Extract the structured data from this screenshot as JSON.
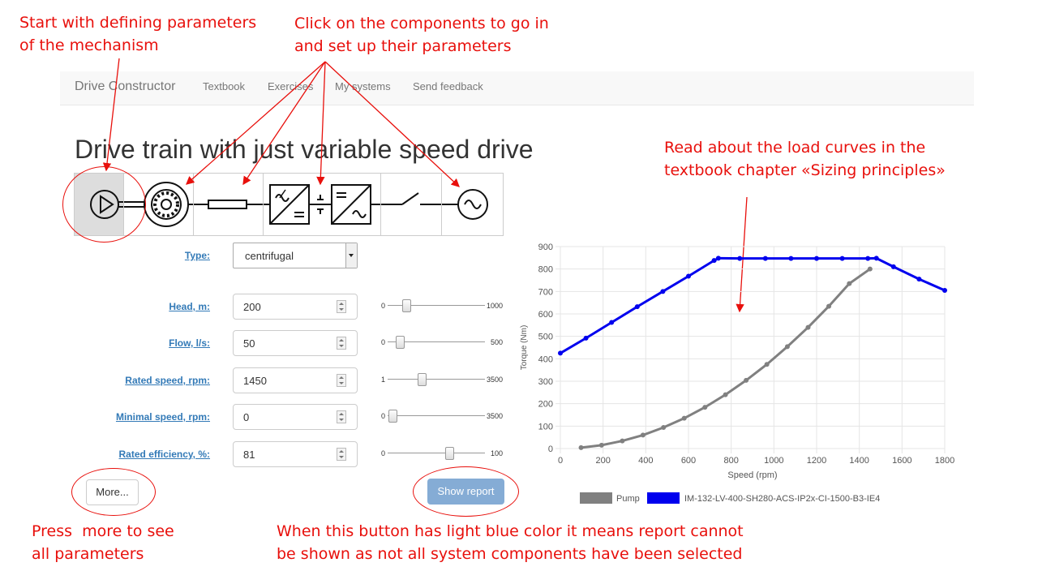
{
  "annotations": {
    "start_params": [
      "Start with defining parameters",
      "of the mechanism"
    ],
    "click_components": [
      "Click on the components to go in",
      "and set up their parameters"
    ],
    "load_curves": [
      "Read about the load curves in the",
      "textbook chapter «Sizing principles»"
    ],
    "press_more": [
      "Press  more to see",
      "all parameters"
    ],
    "light_blue": [
      "When this button has light blue color it means report cannot",
      "be shown as not all system components have been selected"
    ]
  },
  "navbar": {
    "brand": "Drive Constructor",
    "links": [
      "Textbook",
      "Exercises",
      "My systems",
      "Send feedback"
    ]
  },
  "page_title": "Drive train with just variable speed drive",
  "schematic": {
    "components": [
      "pump-icon",
      "motor-icon",
      "shaft-icon",
      "converter-icon",
      "switch-icon",
      "grid-source-icon"
    ],
    "selected": "pump-icon"
  },
  "form": {
    "type": {
      "label": "Type:",
      "value": "centrifugal"
    },
    "fields": [
      {
        "label": "Head, m:",
        "value": "200",
        "min": "0",
        "max": "1000",
        "fraction": 0.2
      },
      {
        "label": "Flow, l/s:",
        "value": "50",
        "min": "0",
        "max": "500",
        "fraction": 0.1
      },
      {
        "label": "Rated speed, rpm:",
        "value": "1450",
        "min": "1",
        "max": "3500",
        "fraction": 0.414
      },
      {
        "label": "Minimal speed, rpm:",
        "value": "0",
        "min": "0",
        "max": "3500",
        "fraction": 0.0
      },
      {
        "label": "Rated efficiency, %:",
        "value": "81",
        "min": "0",
        "max": "100",
        "fraction": 0.81
      }
    ]
  },
  "buttons": {
    "more": "More...",
    "show_report": "Show report"
  },
  "colors": {
    "annotation": "#e8100c",
    "pump_series": "#808080",
    "motor_series": "#0000ee",
    "report_button": "#85acd5"
  },
  "chart_data": {
    "type": "line",
    "xlabel": "Speed (rpm)",
    "ylabel": "Torque (Nm)",
    "xlim": [
      0,
      1800
    ],
    "ylim": [
      0,
      900
    ],
    "xticks": [
      "0",
      "200",
      "400",
      "600",
      "800",
      "1000",
      "1200",
      "1400",
      "1600",
      "1800"
    ],
    "yticks": [
      "0",
      "100",
      "200",
      "300",
      "400",
      "500",
      "600",
      "700",
      "800",
      "900"
    ],
    "grid": true,
    "legend": "bottom",
    "series": [
      {
        "name": "Pump",
        "x": [
          97,
          193,
          290,
          387,
          483,
          580,
          677,
          773,
          870,
          967,
          1063,
          1160,
          1257,
          1353,
          1450
        ],
        "y": [
          4,
          15,
          34,
          60,
          94,
          135,
          184,
          240,
          304,
          375,
          454,
          540,
          634,
          735,
          800
        ]
      },
      {
        "name": "IM-132-LV-400-SH280-ACS-IP2x-CI-1500-B3-IE4",
        "x": [
          0,
          120,
          240,
          360,
          480,
          600,
          720,
          740,
          840,
          960,
          1080,
          1200,
          1320,
          1440,
          1480,
          1560,
          1680,
          1800
        ],
        "y": [
          425,
          492,
          562,
          632,
          700,
          768,
          838,
          848,
          847,
          847,
          847,
          847,
          847,
          847,
          848,
          810,
          755,
          705
        ]
      }
    ]
  }
}
